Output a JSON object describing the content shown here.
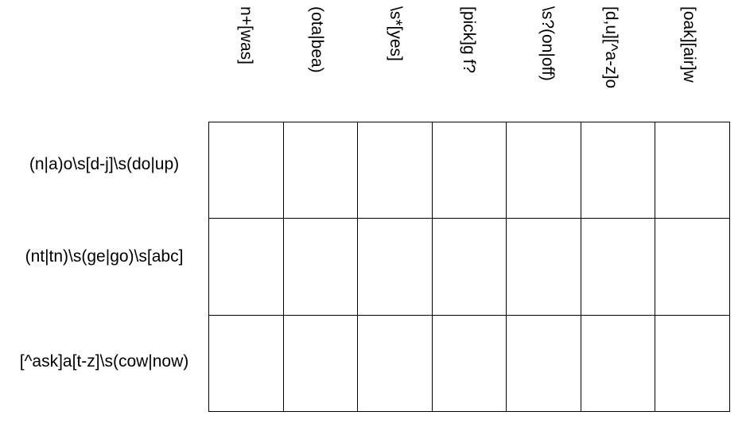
{
  "columns": [
    "n+[was]",
    "(ota|bea)",
    "\\s*[yes]",
    "[pick]g f?",
    "\\s?(on|off)",
    "[d,u][^a-z]o",
    "[oak][air]w"
  ],
  "rows": [
    "(n|a)o\\s[d-j]\\s(do|up)",
    "(nt|tn)\\s(ge|go)\\s[abc]",
    "[^ask]a[t-z]\\s(cow|now)"
  ],
  "cells": [
    [
      "",
      "",
      "",
      "",
      "",
      "",
      ""
    ],
    [
      "",
      "",
      "",
      "",
      "",
      "",
      ""
    ],
    [
      "",
      "",
      "",
      "",
      "",
      "",
      ""
    ]
  ]
}
